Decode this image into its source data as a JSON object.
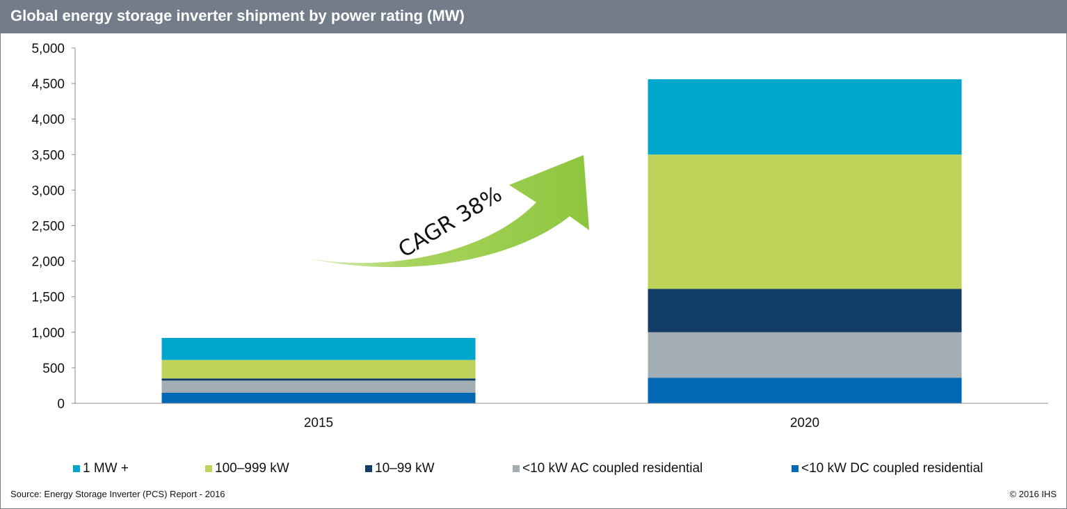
{
  "chart_data": {
    "type": "bar",
    "stacked": true,
    "title": "Global energy storage inverter shipment by power rating (MW)",
    "categories": [
      "2015",
      "2020"
    ],
    "series": [
      {
        "name": "<10 kW DC coupled residential",
        "color": "#0068b5",
        "values": [
          150,
          360
        ]
      },
      {
        "name": "<10 kW AC coupled residential",
        "color": "#a2adb4",
        "values": [
          170,
          640
        ]
      },
      {
        "name": "10–99 kW",
        "color": "#123d66",
        "values": [
          30,
          610
        ]
      },
      {
        "name": "100–999 kW",
        "color": "#bed35a",
        "values": [
          260,
          1890
        ]
      },
      {
        "name": "1 MW +",
        "color": "#00a6cb",
        "values": [
          310,
          1060
        ]
      }
    ],
    "ylim": [
      0,
      5000
    ],
    "yticks": [
      "0",
      "500",
      "1,000",
      "1,500",
      "2,000",
      "2,500",
      "3,000",
      "3,500",
      "4,000",
      "4,500",
      "5,000"
    ],
    "ytick_values": [
      0,
      500,
      1000,
      1500,
      2000,
      2500,
      3000,
      3500,
      4000,
      4500,
      5000
    ],
    "grid": false,
    "legend_position": "bottom",
    "annotation": {
      "text": "CAGR 38%",
      "arrow_color": "#8dc63f"
    }
  },
  "footer": {
    "source": "Source: Energy Storage Inverter (PCS) Report - 2016",
    "copyright": "© 2016 IHS"
  }
}
